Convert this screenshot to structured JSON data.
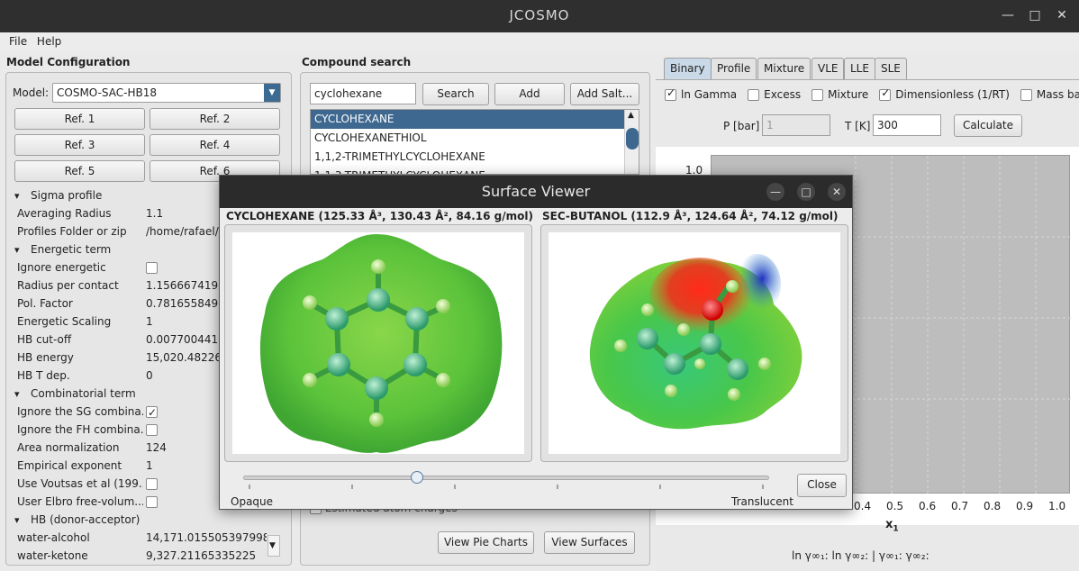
{
  "window": {
    "title": "JCOSMO"
  },
  "menu": [
    "File",
    "Help"
  ],
  "model_config": {
    "title": "Model Configuration",
    "model_label": "Model:",
    "model_value": "COSMO-SAC-HB18",
    "ref_buttons": [
      "Ref. 1",
      "Ref. 2",
      "Ref. 3",
      "Ref. 4",
      "Ref. 5",
      "Ref. 6"
    ],
    "properties": [
      {
        "type": "group",
        "label": "Sigma profile"
      },
      {
        "label": "Averaging Radius",
        "value": "1.1"
      },
      {
        "label": "Profiles Folder or zip",
        "value": "/home/rafael/g"
      },
      {
        "type": "group",
        "label": "Energetic term"
      },
      {
        "label": "Ignore energetic",
        "checkbox": false
      },
      {
        "label": "Radius per contact",
        "value": "1.1566674190"
      },
      {
        "label": "Pol. Factor",
        "value": "0.781655849"
      },
      {
        "label": "Energetic Scaling",
        "value": "1"
      },
      {
        "label": "HB cut-off",
        "value": "0.0077004415"
      },
      {
        "label": "HB energy",
        "value": "15,020.482268"
      },
      {
        "label": "HB T dep.",
        "value": "0"
      },
      {
        "type": "group",
        "label": "Combinatorial term"
      },
      {
        "label": "Ignore the SG combina...",
        "checkbox": true
      },
      {
        "label": "Ignore the FH combina...",
        "checkbox": false
      },
      {
        "label": "Area normalization",
        "value": "124"
      },
      {
        "label": "Empirical exponent",
        "value": "1"
      },
      {
        "label": "Use Voutsas et al (199...",
        "checkbox": false
      },
      {
        "label": "User Elbro free-volum...",
        "checkbox": false
      },
      {
        "type": "group",
        "label": "HB (donor-acceptor)"
      },
      {
        "label": "water-alcohol",
        "value": "14,171.015505397998"
      },
      {
        "label": "water-ketone",
        "value": "9,327.21165335225"
      }
    ]
  },
  "compound_search": {
    "title": "Compound search",
    "query": "cyclohexane",
    "search_label": "Search",
    "add_label": "Add",
    "add_salt_label": "Add Salt...",
    "results": [
      "CYCLOHEXANE",
      "CYCLOHEXANETHIOL",
      "1,1,2-TRIMETHYLCYCLOHEXANE",
      "1,1,3-TRIMETHYLCYCLOHEXANE"
    ],
    "estimated_charges": "Estimated atom charges",
    "view_pie_label": "View Pie Charts",
    "view_surfaces_label": "View Surfaces"
  },
  "analysis": {
    "tabs": [
      "Binary",
      "Profile",
      "Mixture",
      "VLE",
      "LLE",
      "SLE"
    ],
    "active_tab": "Binary",
    "options": [
      {
        "label": "ln Gamma",
        "checked": true
      },
      {
        "label": "Excess",
        "checked": false
      },
      {
        "label": "Mixture",
        "checked": false
      },
      {
        "label": "Dimensionless (1/RT)",
        "checked": true
      },
      {
        "label": "Mass based",
        "checked": false
      }
    ],
    "p_label": "P [bar]",
    "p_value": "1",
    "t_label": "T [K]",
    "t_value": "300",
    "calculate_label": "Calculate",
    "ytick_top": "1.0",
    "xticks": [
      "0.4",
      "0.5",
      "0.6",
      "0.7",
      "0.8",
      "0.9",
      "1.0"
    ],
    "xlabel": "x",
    "xlabel_sub": "1",
    "footer": "ln γ∞₁:  ln γ∞₂:   |  γ∞₁:  γ∞₂:"
  },
  "surface_viewer": {
    "title": "Surface Viewer",
    "left_label": "CYCLOHEXANE (125.33 Å³, 130.43 Å², 84.16 g/mol)",
    "right_label": "SEC-BUTANOL (112.9 Å³, 124.64 Å², 74.12 g/mol)",
    "slider_value": 0.33,
    "opaque_label": "Opaque",
    "translucent_label": "Translucent",
    "close_label": "Close"
  }
}
